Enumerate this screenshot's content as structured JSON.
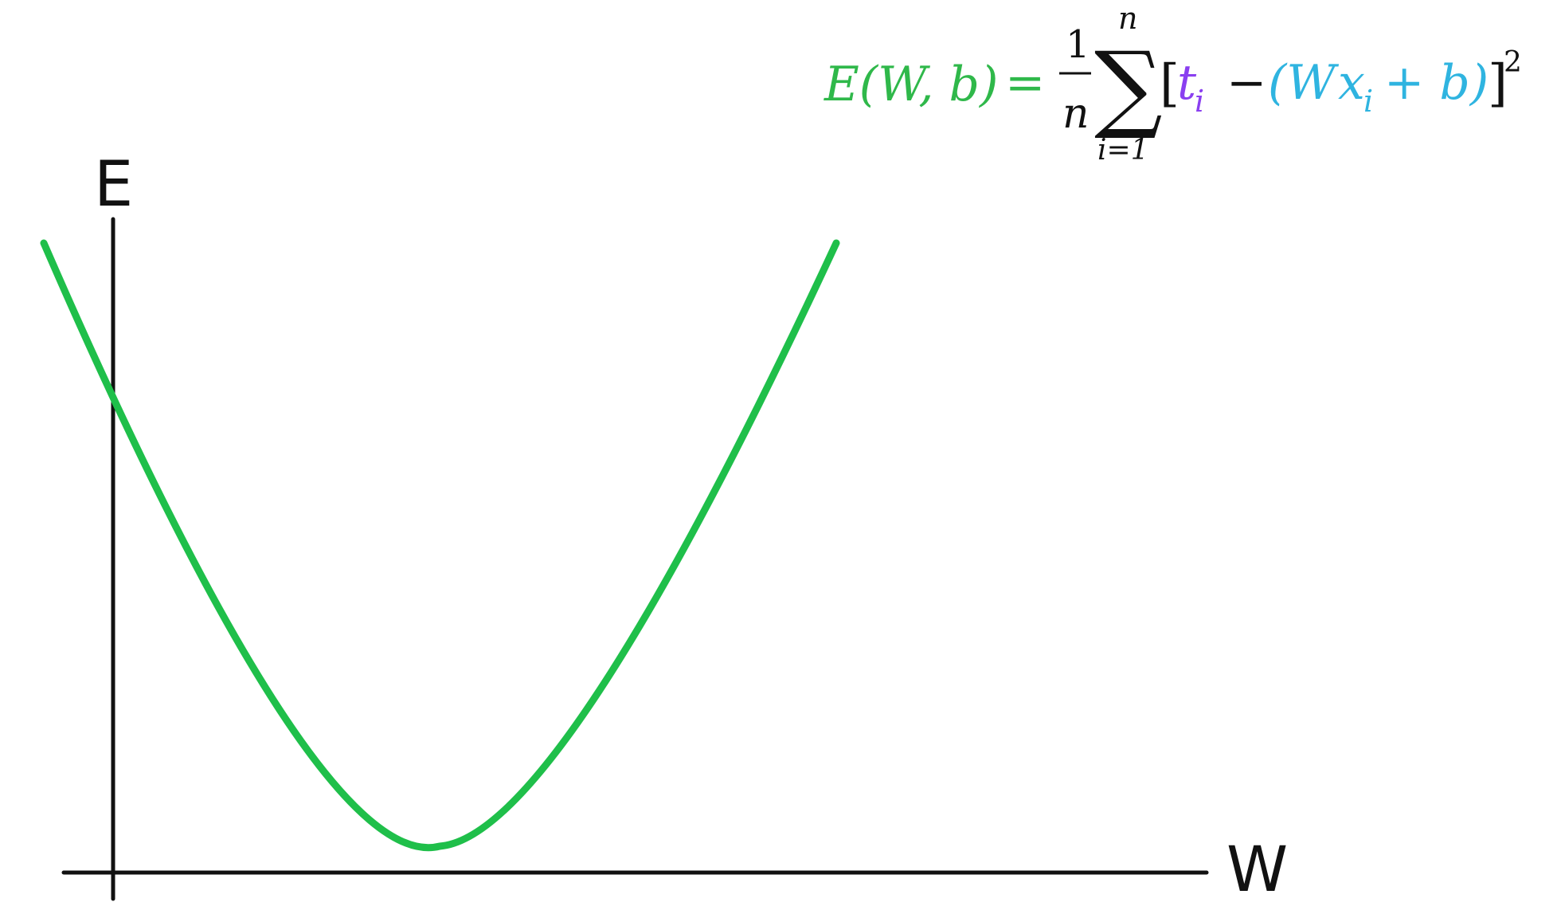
{
  "colors": {
    "curve": "#1fbf4a",
    "axis": "#111111",
    "loss_lhs": "#2fb84a",
    "target": "#8a3ff0",
    "prediction": "#2fb4e0",
    "operator": "#111111"
  },
  "axes": {
    "y_label": "E",
    "x_label": "W"
  },
  "formula": {
    "lhs": "E(W, b)",
    "equals": "=",
    "frac_num": "1",
    "frac_den": "n",
    "sum_symbol": "∑",
    "sum_upper": "n",
    "sum_lower": "i=1",
    "open_bracket": "[",
    "target_base": "t",
    "target_sub": "i",
    "minus": "−",
    "pred_open": "(W",
    "pred_x": "x",
    "pred_sub": "i",
    "pred_rest": "+ b)",
    "close_bracket": "]",
    "exponent": "2"
  },
  "icons": {
    "curve_shape": "parabola-curve"
  }
}
